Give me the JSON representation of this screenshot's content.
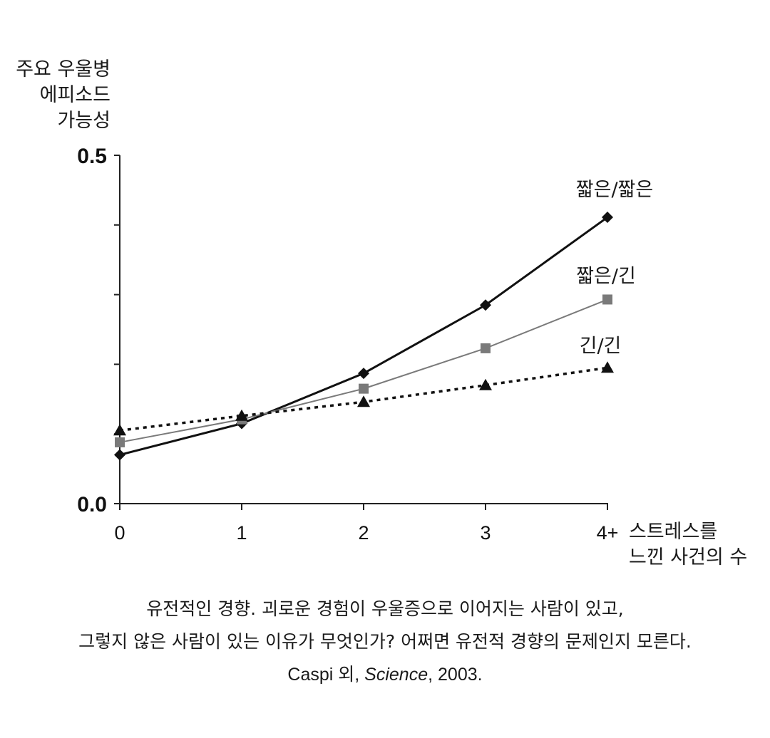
{
  "chart_data": {
    "type": "line",
    "ylabel": [
      "주요 우울병",
      "에피소드",
      "가능성"
    ],
    "xlabel": [
      "스트레스를",
      "느낀 사건의 수"
    ],
    "categories": [
      "0",
      "1",
      "2",
      "3",
      "4+"
    ],
    "ylim": [
      0,
      0.5
    ],
    "yticks": [
      0.0,
      0.1,
      0.2,
      0.3,
      0.4,
      0.5
    ],
    "yticklabels": {
      "0": "0.0",
      "5": "0.5"
    },
    "grid": false,
    "series": [
      {
        "name": "짧은/짧은",
        "marker": "diamond",
        "color": "#111111",
        "dash": "solid",
        "values": [
          0.07,
          0.115,
          0.187,
          0.285,
          0.411
        ]
      },
      {
        "name": "짧은/긴",
        "marker": "square",
        "color": "#7a7a7a",
        "dash": "solid",
        "values": [
          0.088,
          0.121,
          0.165,
          0.223,
          0.293
        ]
      },
      {
        "name": "긴/긴",
        "marker": "triangle",
        "color": "#111111",
        "dash": "dotted",
        "values": [
          0.105,
          0.126,
          0.146,
          0.17,
          0.195
        ]
      }
    ]
  },
  "caption": {
    "line1": "유전적인 경향. 괴로운 경험이 우울증으로 이어지는 사람이 있고,",
    "line2": "그렇지 않은 사람이 있는 이유가 무엇인가? 어쩌면 유전적 경향의 문제인지 모른다.",
    "source_authors": "Caspi 외, ",
    "source_journal": "Science",
    "source_year": ", 2003."
  }
}
